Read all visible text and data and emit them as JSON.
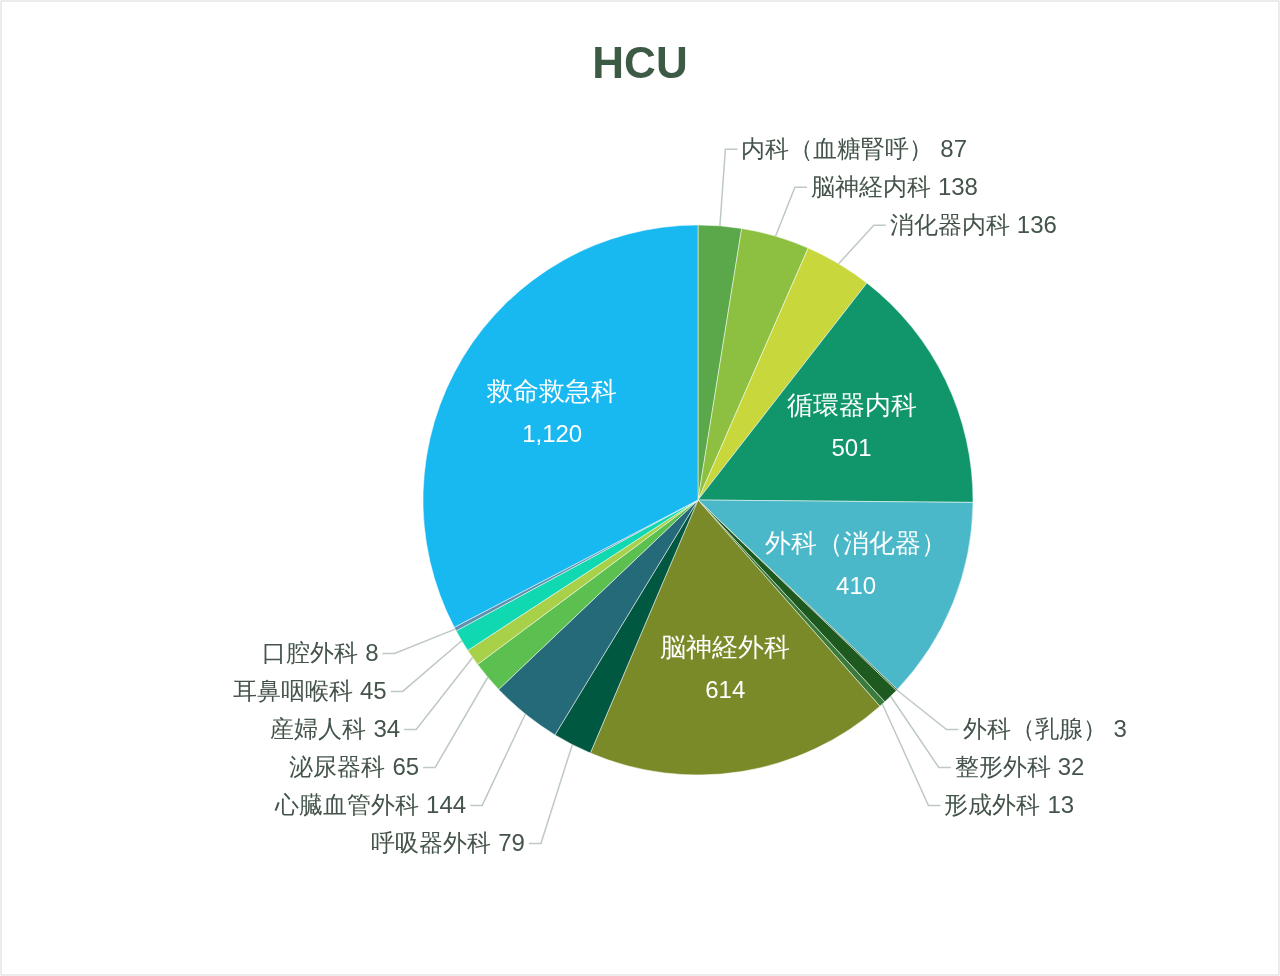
{
  "chart_data": {
    "type": "pie",
    "title": "HCU",
    "categories": [
      "内科（血糖腎呼）",
      "脳神経内科",
      "消化器内科",
      "循環器内科",
      "外科（消化器）",
      "外科（乳腺）",
      "整形外科",
      "形成外科",
      "脳神経外科",
      "呼吸器外科",
      "心臓血管外科",
      "泌尿器科",
      "産婦人科",
      "耳鼻咽喉科",
      "口腔外科",
      "救命救急科"
    ],
    "values": [
      87,
      138,
      136,
      501,
      410,
      3,
      32,
      13,
      614,
      79,
      144,
      65,
      34,
      45,
      8,
      1120
    ],
    "colors": [
      "#5aa84a",
      "#8dc040",
      "#c8d83c",
      "#10966a",
      "#4ab8c8",
      "#2a6a30",
      "#1e5a20",
      "#3a7a3a",
      "#7a8a28",
      "#005840",
      "#256a78",
      "#5cc050",
      "#a8d048",
      "#10d8b0",
      "#6090b0",
      "#18b8f0"
    ],
    "value_labels": [
      "87",
      "138",
      "136",
      "501",
      "410",
      "3",
      "32",
      "13",
      "614",
      "79",
      "144",
      "65",
      "34",
      "45",
      "8",
      "1,120"
    ]
  }
}
